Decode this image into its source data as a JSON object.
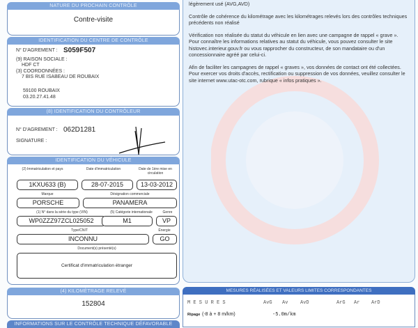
{
  "next_control": {
    "header": "NATURE DU PROCHAIN CONTRÔLE",
    "value": "Contre-visite"
  },
  "center": {
    "header": "IDENTIFICATION DU CENTRE DE CONTRÔLE",
    "agrement_label": "N° D'AGREMENT :",
    "agrement": "S059F507",
    "raison_label": "(9) RAISON SOCIALE :",
    "raison": "HDF CT",
    "coord_label": "(3) COORDONNÉES :",
    "address": "7 BIS RUE ISABEAU DE ROUBAIX",
    "city": "59100 ROUBAIX",
    "phone": "03.20.27.41.48"
  },
  "controller": {
    "header": "(8) IDENTIFICATION DU CONTRÔLEUR",
    "agrement_label": "N° D'AGREMENT :",
    "agrement": "062D1281",
    "signature_label": "SIGNATURE :"
  },
  "vehicle": {
    "header": "IDENTIFICATION DU VÉHICULE",
    "immat_label": "(2) Immatriculation et pays",
    "immat": "1KXU633 (B)",
    "date_immat_label": "Date d'immatriculation",
    "date_immat": "28-07-2015",
    "first_date_label": "Date de 1ère mise en circulation",
    "first_date": "13-03-2012",
    "marque_label": "Marque",
    "marque": "PORSCHE",
    "designation_label": "Désignation commerciale",
    "designation": "PANAMERA",
    "vin_label": "(1) N° dans la série du type (VIN)",
    "vin": "WP0ZZZ97ZCL025052",
    "category_label": "(5) Catégorie internationale",
    "category": "M1",
    "genre_label": "Genre",
    "genre": "VP",
    "type_label": "Type/CNIT",
    "type": "INCONNU",
    "energy_label": "Énergie",
    "energy": "GO",
    "docs_label": "Document(s) présenté(s)",
    "docs": "Certificat d'immatriculation étranger"
  },
  "km": {
    "header": "(4) KILOMÈTRAGE RELEVÉ",
    "value": "152804"
  },
  "info_header": "INFORMATIONS SUR LE CONTRÔLE TECHNIQUE DÉFAVORABLE",
  "notes": [
    "légèrement usé (AVG,AVD)",
    "Contrôle de cohérence du kilométrage avec les kilométrages relevés lors des contrôles techniques précédents non réalisé",
    "Vérification non réalisée du statut du véhicule en lien avec une campagne de rappel « grave ». Pour connaître les informations relatives au statut du véhicule, vous pouvez consulter le site histovec.interieur.gouv.fr ou vous rapprocher du constructeur, de son mandataire ou d'un  concessionnaire agréé par celui-ci.",
    "Afin de faciliter les campagnes de rappel « graves », vos données de contact ont été collectées. Pour exercer vos droits d'accès, rectification ou suppression de vos données, veuillez consulter le site internet www.utac-otc.com,  rubrique « infos pratiques »."
  ],
  "measures": {
    "header": "MESURES RÉALISÉES ET VALEURS LIMITES CORRESPONDANTES",
    "title": "M E S U R E S",
    "cols": [
      "AvG",
      "Av",
      "AvD",
      "ArG",
      "Ar",
      "ArD"
    ],
    "ripage_label": "Ripage",
    "ripage_range": "(-8 à + 8 m/km)",
    "ripage_value": "-5.0m/km"
  }
}
